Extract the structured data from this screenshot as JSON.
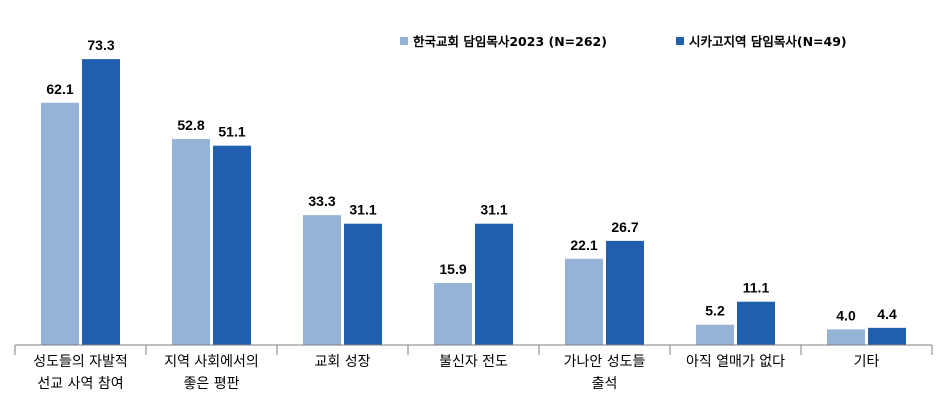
{
  "chart_data": {
    "type": "bar",
    "categories": [
      [
        "성도들의 자발적",
        "선교 사역 참여"
      ],
      [
        "지역 사회에서의",
        "좋은 평판"
      ],
      [
        "교회 성장"
      ],
      [
        "불신자 전도"
      ],
      [
        "가나안 성도들",
        "출석"
      ],
      [
        "아직 열매가 없다"
      ],
      [
        "기타"
      ]
    ],
    "series": [
      {
        "name": "한국교회 담임목사2023 (N=262)",
        "color": "#95b3d7",
        "values": [
          62.1,
          52.8,
          33.3,
          15.9,
          22.1,
          5.2,
          4.0
        ]
      },
      {
        "name": "시카고지역 담임목사(N=49)",
        "color": "#1f5fad",
        "values": [
          73.3,
          51.1,
          31.1,
          31.1,
          26.7,
          11.1,
          4.4
        ]
      }
    ],
    "value_labels": [
      [
        "62.1",
        "52.8",
        "33.3",
        "15.9",
        "22.1",
        "5.2",
        "4.0"
      ],
      [
        "73.3",
        "51.1",
        "31.1",
        "31.1",
        "26.7",
        "11.1",
        "4.4"
      ]
    ],
    "ylim": [
      0,
      80
    ],
    "legend_position": "top-right",
    "grid": false,
    "title": "",
    "xlabel": "",
    "ylabel": ""
  }
}
